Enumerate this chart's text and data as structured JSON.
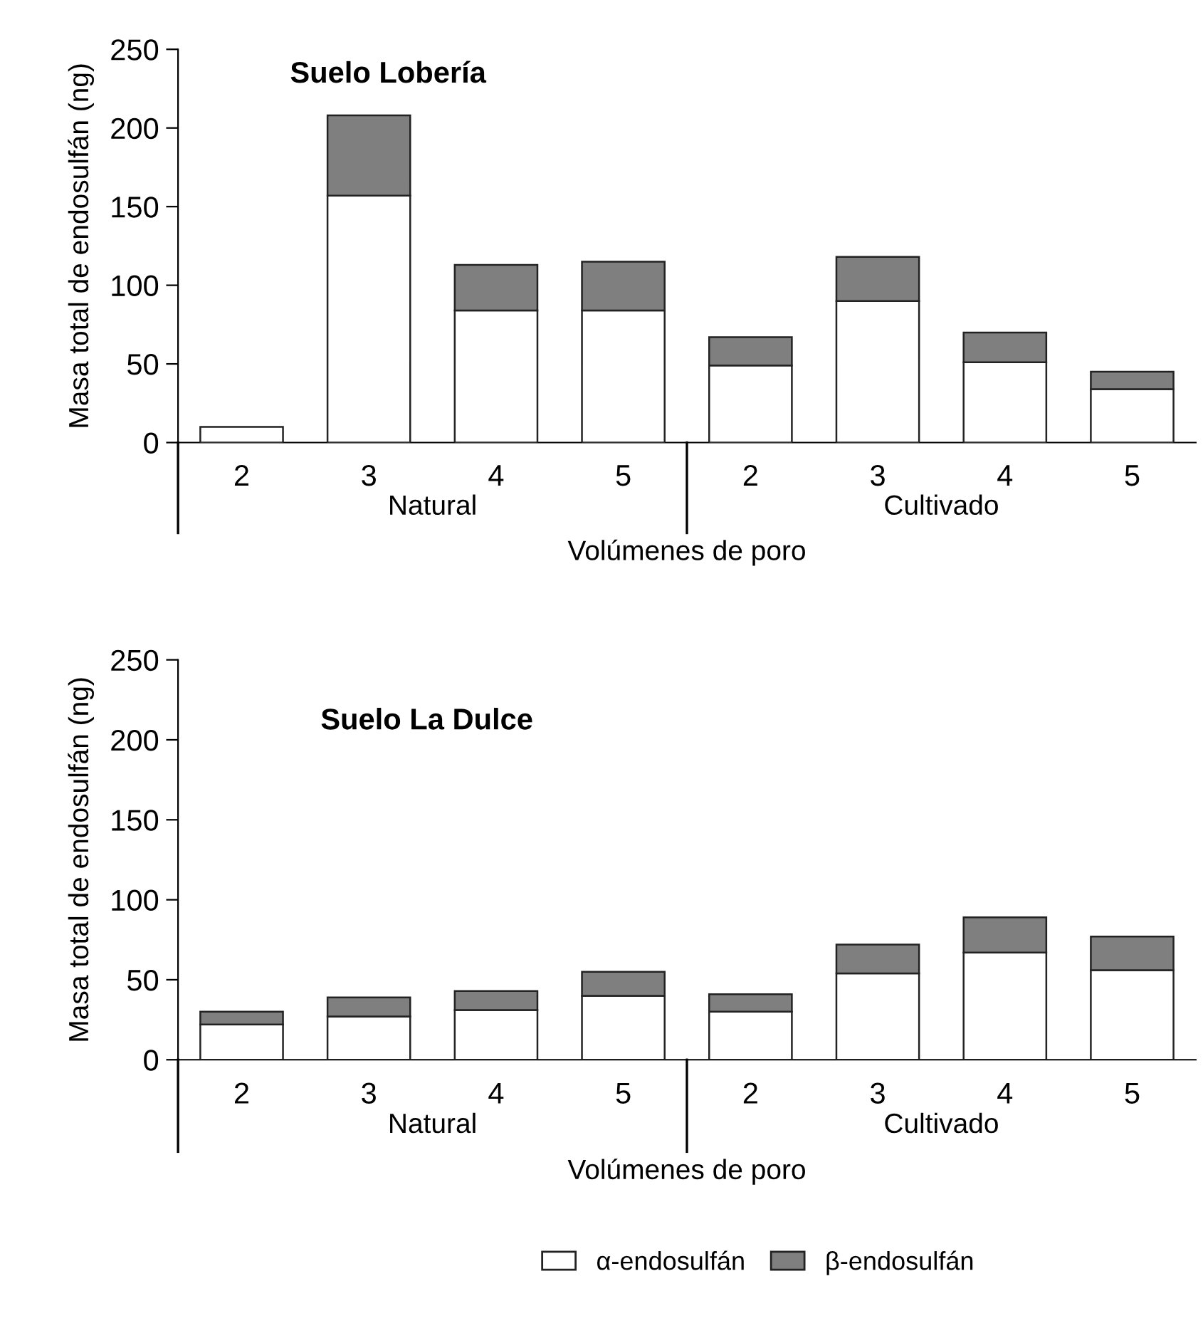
{
  "chart_data": [
    {
      "type": "bar",
      "title": "Suelo Lobería",
      "xlabel": "Volúmenes de poro",
      "ylabel": "Masa total de endosulfán (ng)",
      "categories": [
        "2",
        "3",
        "4",
        "5",
        "2",
        "3",
        "4",
        "5"
      ],
      "stacked": true,
      "ylim": [
        0,
        250
      ],
      "yticks": [
        0,
        50,
        100,
        150,
        200,
        250
      ],
      "grid": false,
      "legend": false,
      "annotations": [
        "Natural",
        "Cultivado"
      ],
      "series": [
        {
          "color": "#ffffff",
          "values": [
            10,
            157,
            84,
            84,
            49,
            90,
            51,
            34
          ]
        },
        {
          "color": "#7f7f7f",
          "values": [
            null,
            51,
            29,
            31,
            18,
            28,
            19,
            11
          ]
        }
      ]
    },
    {
      "type": "bar",
      "title": "Suelo La Dulce",
      "xlabel": "Volúmenes de poro",
      "ylabel": "Masa total de endosulfán (ng)",
      "categories": [
        "2",
        "3",
        "4",
        "5",
        "2",
        "3",
        "4",
        "5"
      ],
      "stacked": true,
      "ylim": [
        0,
        250
      ],
      "yticks": [
        0,
        50,
        100,
        150,
        200,
        250
      ],
      "grid": false,
      "legend": "bottom",
      "annotations": [
        "Natural",
        "Cultivado"
      ],
      "series": [
        {
          "name": "α-endosulfán",
          "color": "#ffffff",
          "values": [
            22,
            27,
            31,
            40,
            30,
            54,
            67,
            56
          ]
        },
        {
          "name": "β-endosulfán",
          "color": "#7f7f7f",
          "values": [
            8,
            12,
            12,
            15,
            11,
            18,
            22,
            21
          ]
        }
      ]
    }
  ]
}
